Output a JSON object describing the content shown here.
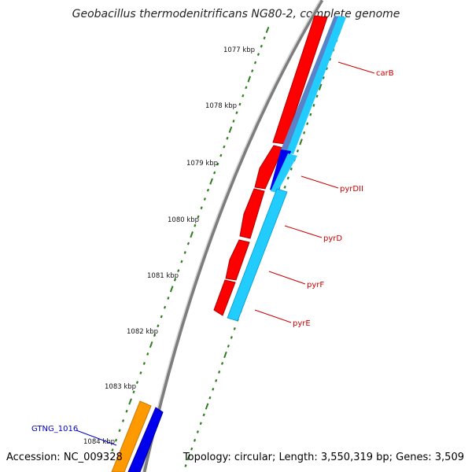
{
  "title": "Geobacillus thermodenitrificans NG80-2, complete genome",
  "footer": {
    "accession": "Accession: NC_009328",
    "stats": "Topology: circular; Length: 3,550,319 bp; Genes: 3,509"
  },
  "colors": {
    "backbone": "#8a8a8a",
    "tick": "#2e7d1e",
    "gene_red": "#ff0000",
    "gene_orange": "#ff9900",
    "gene_blue": "#0000ee",
    "gene_cyan": "#22ccff",
    "label_red": "#cc0000",
    "label_blue": "#0000cc"
  },
  "ticks": [
    "1077 kbp",
    "1078 kbp",
    "1079 kbp",
    "1080 kbp",
    "1081 kbp",
    "1082 kbp",
    "1083 kbp",
    "1084 kbp"
  ],
  "gene_labels": [
    {
      "name": "carB",
      "color": "red"
    },
    {
      "name": "pyrDII",
      "color": "red"
    },
    {
      "name": "pyrD",
      "color": "red"
    },
    {
      "name": "pyrF",
      "color": "red"
    },
    {
      "name": "pyrE",
      "color": "red"
    },
    {
      "name": "GTNG_1016",
      "color": "blue"
    }
  ]
}
